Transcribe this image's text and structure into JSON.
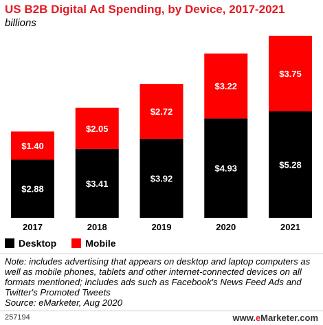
{
  "title": "US B2B Digital Ad Spending, by Device, 2017-2021",
  "subtitle": "billions",
  "colors": {
    "desktop": "#000000",
    "mobile": "#ff0000",
    "title": "#e21a22"
  },
  "chart_data": {
    "type": "bar",
    "stacked": true,
    "categories": [
      "2017",
      "2018",
      "2019",
      "2020",
      "2021"
    ],
    "series": [
      {
        "name": "Desktop",
        "values": [
          2.88,
          3.41,
          3.92,
          4.93,
          5.28
        ],
        "labels": [
          "$2.88",
          "$3.41",
          "$3.92",
          "$4.93",
          "$5.28"
        ]
      },
      {
        "name": "Mobile",
        "values": [
          1.4,
          2.05,
          2.72,
          3.22,
          3.75
        ],
        "labels": [
          "$1.40",
          "$2.05",
          "$2.72",
          "$3.22",
          "$3.75"
        ]
      }
    ],
    "ylim": [
      0,
      9.03
    ],
    "grid": false,
    "legend_position": "bottom-left"
  },
  "legend": {
    "desktop_label": "Desktop",
    "mobile_label": "Mobile"
  },
  "note": "Note: includes advertising that appears on desktop and laptop computers as well as mobile phones, tablets and other internet-connected devices on all formats mentioned; includes ads such as Facebook's News Feed Ads and Twitter's Promoted Tweets",
  "source": "Source: eMarketer, Aug 2020",
  "footer": {
    "chart_id": "257194",
    "brand_prefix": "www.",
    "brand_e": "e",
    "brand_rest": "Marketer",
    "brand_suffix": ".com"
  }
}
